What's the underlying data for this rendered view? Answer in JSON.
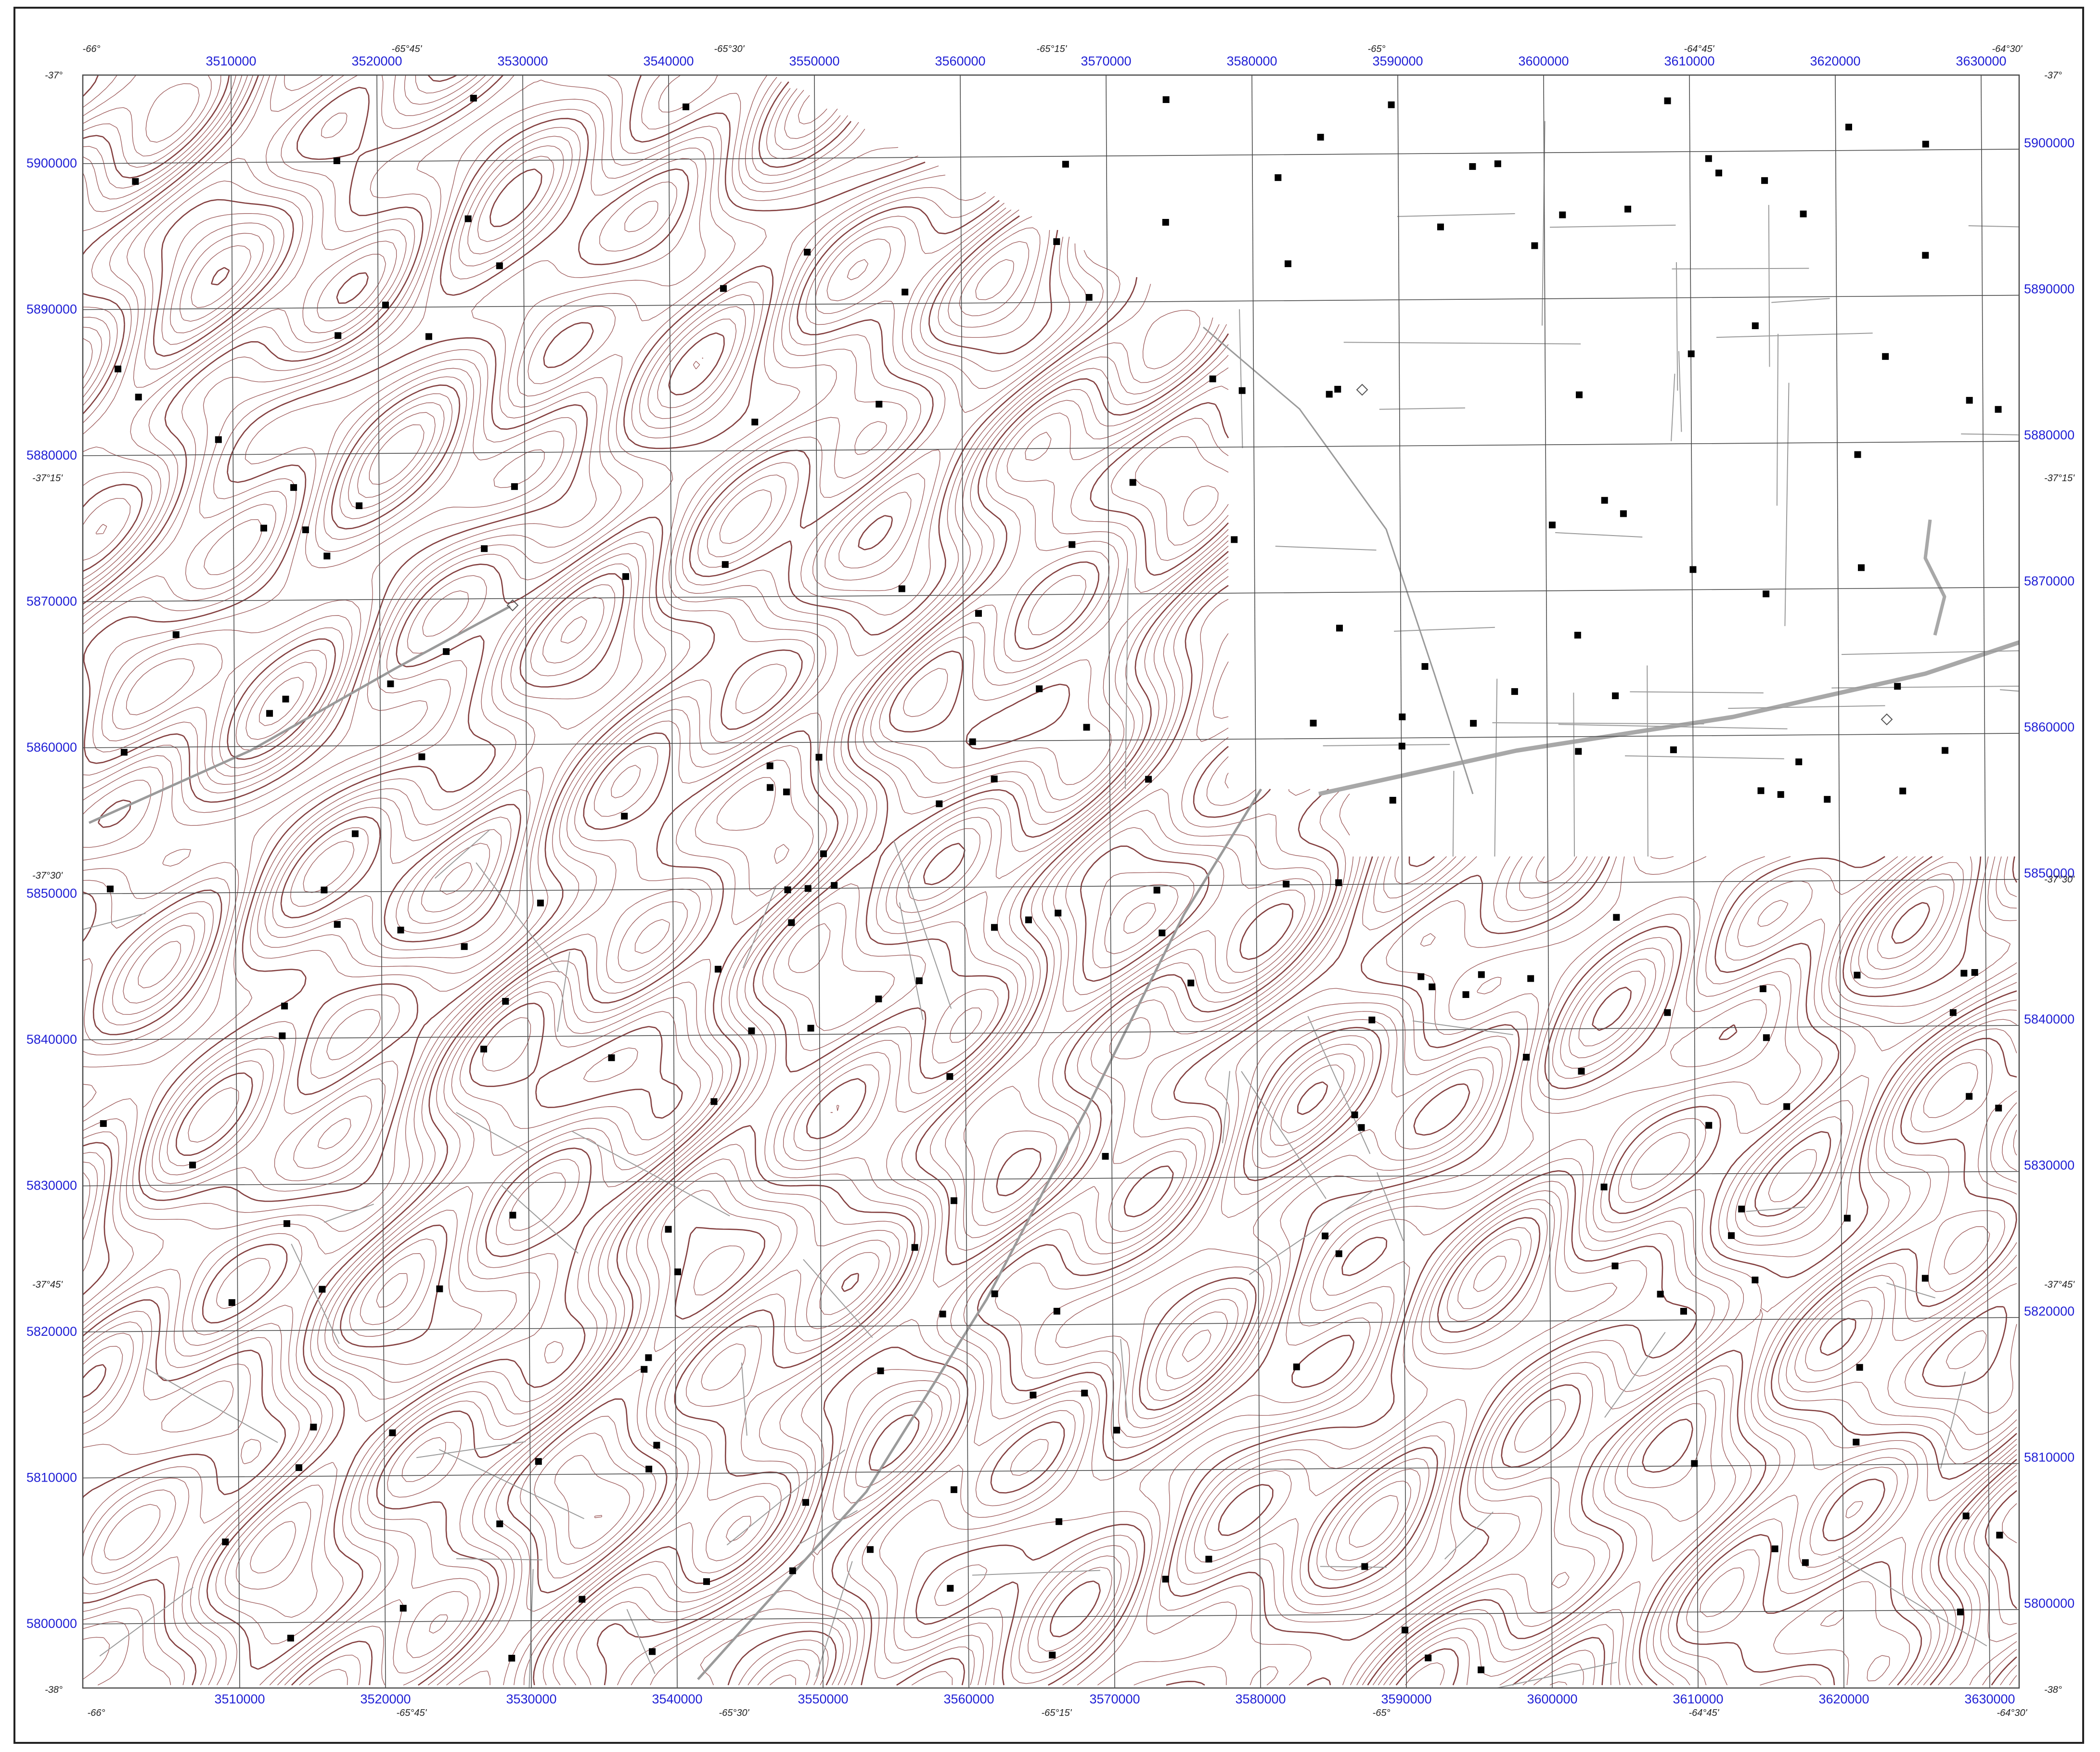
{
  "map": {
    "colors": {
      "contour": "#8a3a3a",
      "contour_index": "#6e1f1f",
      "road": "#9a9a9a",
      "highway": "#a8a8a8",
      "grid": "#4a4a4a",
      "grid_label": "#1f1fd6",
      "geo_label": "#222222",
      "well_marker": "#000000"
    },
    "easting_labels_top": [
      "3510000",
      "3520000",
      "3530000",
      "3540000",
      "3550000",
      "3560000",
      "3570000",
      "3580000",
      "3590000",
      "3600000",
      "3610000",
      "3620000",
      "3630000"
    ],
    "easting_labels_bottom": [
      "3510000",
      "3520000",
      "3530000",
      "3540000",
      "3550000",
      "3560000",
      "3570000",
      "3580000",
      "3590000",
      "3600000",
      "3610000",
      "3620000",
      "3630000"
    ],
    "northing_labels_left": [
      "5900000",
      "5890000",
      "5880000",
      "5870000",
      "5860000",
      "5850000",
      "5840000",
      "5830000",
      "5820000",
      "5810000",
      "5800000"
    ],
    "northing_labels_right": [
      "5900000",
      "5890000",
      "5880000",
      "5870000",
      "5860000",
      "5850000",
      "5840000",
      "5830000",
      "5820000",
      "5810000",
      "5800000"
    ],
    "longitude_labels_top": [
      "-66°",
      "-65°45'",
      "-65°30'",
      "-65°15'",
      "-65°",
      "-64°45'",
      "-64°30'"
    ],
    "longitude_labels_bottom": [
      "-66°",
      "-65°45'",
      "-65°30'",
      "-65°15'",
      "-65°",
      "-64°45'",
      "-64°30'"
    ],
    "latitude_labels_left": [
      "-37°",
      "-37°15'",
      "-37°30'",
      "-37°45'",
      "-38°"
    ],
    "latitude_labels_right": [
      "-37°",
      "-37°15'",
      "-37°30'",
      "-37°45'",
      "-38°"
    ],
    "marker_legend": {
      "well": "square",
      "other_site": "diamond"
    }
  }
}
